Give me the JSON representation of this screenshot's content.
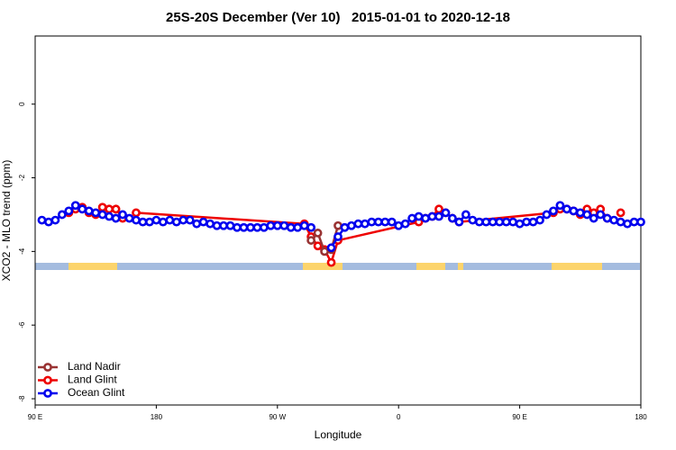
{
  "chart_data": {
    "type": "line",
    "title": "25S-20S December (Ver 10)   2015-01-01 to 2020-12-18",
    "x_label": "Longitude",
    "y_label": "XCO2 - MLO trend (ppm)",
    "xlim": [
      90,
      540
    ],
    "ylim": [
      -8.17,
      1.85
    ],
    "xticks": [
      {
        "value": 90,
        "label": "90 E"
      },
      {
        "value": 180,
        "label": "180"
      },
      {
        "value": 270,
        "label": "90 W"
      },
      {
        "value": 360,
        "label": "0"
      },
      {
        "value": 450,
        "label": "90 E"
      },
      {
        "value": 540,
        "label": "180"
      }
    ],
    "yticks": [
      -8,
      -6,
      -4,
      -2,
      0
    ],
    "legend": "bottom-left",
    "series": [
      {
        "name": "Land Nadir",
        "color": "#993333",
        "x": [
          295,
          300,
          305,
          310,
          315
        ],
        "values": [
          -3.7,
          -3.5,
          -4.0,
          -3.95,
          -3.3
        ]
      },
      {
        "name": "Land Glint",
        "color": "#ee0000",
        "x": [
          115,
          120,
          125,
          130,
          135,
          140,
          145,
          150,
          155,
          160,
          165,
          290,
          295,
          300,
          305,
          310,
          315,
          375,
          380,
          385,
          390,
          395,
          400,
          405,
          475,
          480,
          485,
          490,
          495,
          500,
          505,
          510,
          515,
          520,
          525
        ],
        "values": [
          -2.95,
          -2.85,
          -2.8,
          -2.95,
          -3.0,
          -2.8,
          -2.85,
          -2.85,
          -3.1,
          null,
          -2.95,
          -3.25,
          -3.6,
          -3.85,
          -3.95,
          -4.3,
          -3.7,
          -3.2,
          -3.1,
          -3.05,
          -2.85,
          -2.95,
          -3.1,
          -3.2,
          -2.95,
          -2.85,
          -2.85,
          -2.9,
          -3.0,
          -2.85,
          -2.95,
          -2.85,
          -3.1,
          null,
          -2.95
        ]
      },
      {
        "name": "Ocean Glint",
        "color": "#0000ee",
        "x": [
          95,
          100,
          105,
          110,
          115,
          120,
          125,
          130,
          135,
          140,
          145,
          150,
          155,
          160,
          165,
          170,
          175,
          180,
          185,
          190,
          195,
          200,
          205,
          210,
          215,
          220,
          225,
          230,
          235,
          240,
          245,
          250,
          255,
          260,
          265,
          270,
          275,
          280,
          285,
          290,
          295,
          300,
          305,
          310,
          315,
          320,
          325,
          330,
          335,
          340,
          345,
          350,
          355,
          360,
          365,
          370,
          375,
          380,
          385,
          390,
          395,
          400,
          405,
          410,
          415,
          420,
          425,
          430,
          435,
          440,
          445,
          450,
          455,
          460,
          465,
          470,
          475,
          480,
          485,
          490,
          495,
          500,
          505,
          510,
          515,
          520,
          525,
          530,
          535,
          540
        ],
        "values": [
          -3.15,
          -3.2,
          -3.15,
          -3.0,
          -2.9,
          -2.75,
          -2.85,
          -2.9,
          -2.95,
          -3.0,
          -3.05,
          -3.1,
          -3.0,
          -3.1,
          -3.15,
          -3.2,
          -3.2,
          -3.15,
          -3.2,
          -3.15,
          -3.2,
          -3.15,
          -3.15,
          -3.25,
          -3.2,
          -3.25,
          -3.3,
          -3.3,
          -3.3,
          -3.35,
          -3.35,
          -3.35,
          -3.35,
          -3.35,
          -3.3,
          -3.3,
          -3.3,
          -3.35,
          -3.35,
          -3.3,
          -3.35,
          null,
          null,
          -3.9,
          -3.6,
          -3.35,
          -3.3,
          -3.25,
          -3.25,
          -3.2,
          -3.2,
          -3.2,
          -3.2,
          -3.3,
          -3.25,
          -3.1,
          -3.05,
          -3.1,
          -3.05,
          -3.05,
          -2.95,
          -3.1,
          -3.2,
          -3.0,
          -3.15,
          -3.2,
          -3.2,
          -3.2,
          -3.2,
          -3.2,
          -3.2,
          -3.25,
          -3.2,
          -3.2,
          -3.15,
          -3.0,
          -2.9,
          -2.75,
          -2.85,
          -2.9,
          -2.95,
          -3.0,
          -3.1,
          -3.0,
          -3.1,
          -3.15,
          -3.2,
          -3.25,
          -3.2,
          -3.2
        ]
      }
    ]
  }
}
